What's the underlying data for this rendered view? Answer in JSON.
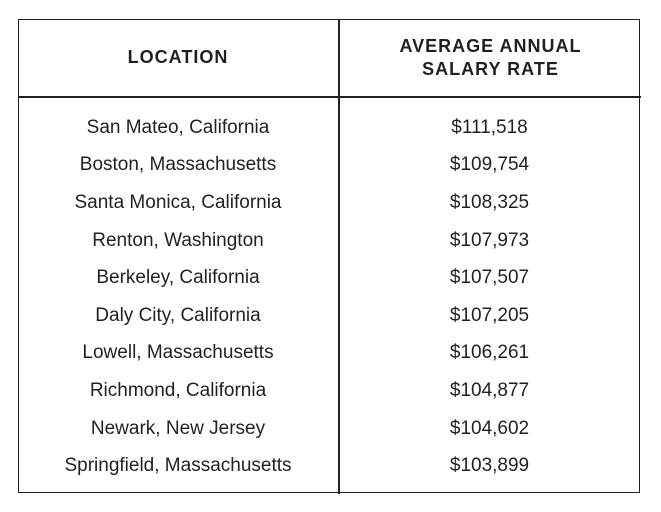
{
  "headers": {
    "location": "LOCATION",
    "salary": "AVERAGE ANNUAL SALARY RATE"
  },
  "rows": [
    {
      "location": "San Mateo, California",
      "salary": "$111,518"
    },
    {
      "location": "Boston, Massachusetts",
      "salary": "$109,754"
    },
    {
      "location": "Santa Monica, California",
      "salary": "$108,325"
    },
    {
      "location": "Renton, Washington",
      "salary": "$107,973"
    },
    {
      "location": "Berkeley, California",
      "salary": "$107,507"
    },
    {
      "location": "Daly City, California",
      "salary": "$107,205"
    },
    {
      "location": "Lowell, Massachusetts",
      "salary": "$106,261"
    },
    {
      "location": "Richmond, California",
      "salary": "$104,877"
    },
    {
      "location": "Newark, New Jersey",
      "salary": "$104,602"
    },
    {
      "location": "Springfield, Massachusetts",
      "salary": "$103,899"
    }
  ]
}
